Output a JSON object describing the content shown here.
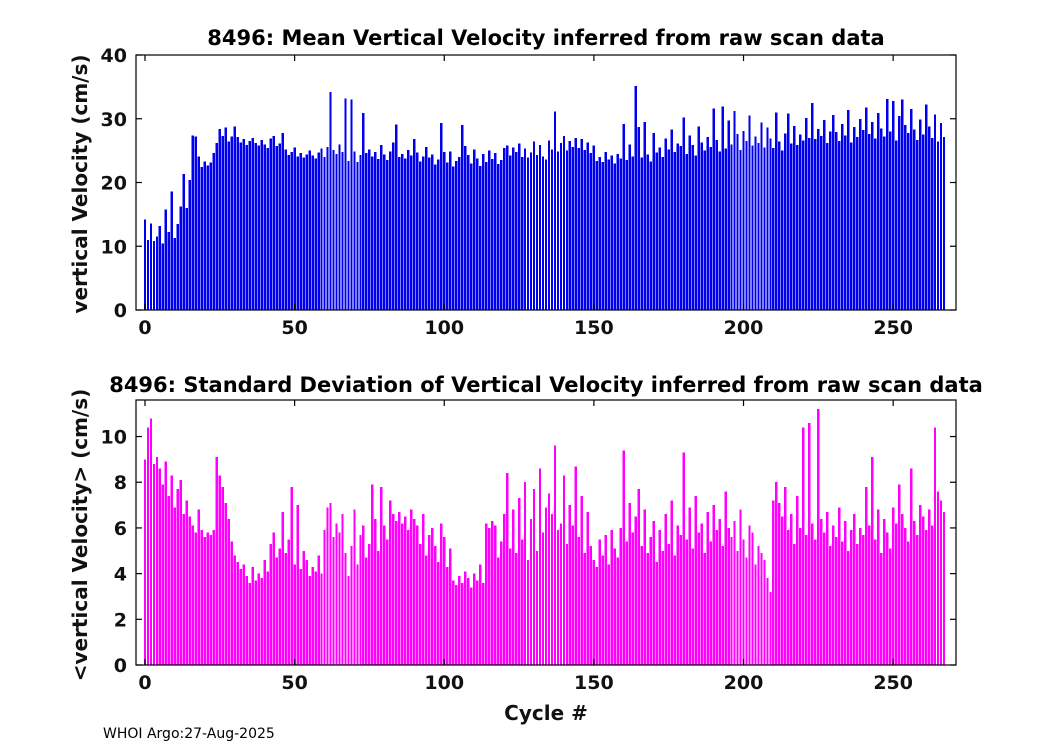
{
  "figure": {
    "footer": "WHOI Argo:27-Aug-2025"
  },
  "chart_data": [
    {
      "type": "bar",
      "title": "8496: Mean Vertical Velocity inferred from raw scan data",
      "ylabel": "vertical Velocity (cm/s)",
      "xlabel": "",
      "color": "#0000EE",
      "xlim": [
        -3,
        271
      ],
      "ylim": [
        0,
        40
      ],
      "xticks": [
        0,
        50,
        100,
        150,
        200,
        250
      ],
      "yticks": [
        0,
        10,
        20,
        30,
        40
      ],
      "x_start": 0,
      "x_step": 1,
      "values": [
        14.2,
        11.0,
        13.6,
        10.8,
        11.5,
        13.2,
        10.4,
        15.8,
        12.2,
        18.6,
        11.3,
        13.5,
        16.2,
        21.3,
        16.0,
        20.4,
        27.4,
        27.2,
        24.1,
        22.4,
        23.3,
        22.7,
        23.1,
        24.6,
        26.2,
        28.4,
        27.3,
        28.6,
        26.4,
        27.2,
        28.8,
        27.1,
        26.3,
        26.8,
        25.9,
        26.5,
        27.0,
        26.2,
        25.8,
        26.7,
        26.0,
        25.4,
        26.9,
        27.3,
        25.7,
        26.1,
        27.8,
        25.2,
        24.3,
        24.8,
        25.5,
        24.1,
        24.6,
        23.9,
        24.4,
        25.0,
        24.2,
        23.8,
        24.7,
        25.3,
        24.0,
        25.6,
        34.2,
        25.1,
        24.5,
        26.0,
        24.8,
        33.2,
        23.4,
        33.0,
        24.9,
        23.2,
        24.3,
        30.9,
        24.6,
        25.2,
        24.1,
        24.8,
        23.7,
        25.9,
        24.4,
        23.5,
        24.9,
        26.3,
        29.1,
        24.0,
        24.5,
        23.8,
        25.1,
        24.2,
        26.8,
        24.7,
        23.3,
        24.1,
        25.6,
        23.9,
        24.4,
        22.8,
        23.6,
        29.3,
        24.8,
        23.1,
        24.9,
        22.5,
        23.4,
        24.0,
        29.0,
        25.7,
        24.3,
        23.0,
        25.2,
        23.8,
        22.6,
        24.5,
        23.2,
        25.0,
        23.7,
        24.6,
        22.9,
        23.5,
        25.4,
        25.8,
        24.2,
        25.5,
        24.8,
        26.1,
        24.0,
        25.3,
        23.9,
        24.7,
        26.4,
        24.3,
        25.9,
        24.1,
        23.6,
        26.6,
        25.2,
        31.1,
        24.9,
        26.2,
        27.3,
        25.0,
        26.5,
        25.6,
        27.0,
        25.4,
        26.8,
        25.1,
        26.3,
        24.6,
        25.8,
        23.4,
        24.0,
        23.2,
        24.8,
        23.6,
        24.2,
        23.0,
        24.5,
        23.8,
        29.2,
        23.5,
        26.0,
        24.1,
        35.1,
        28.7,
        23.9,
        29.5,
        24.4,
        23.3,
        27.8,
        24.7,
        25.5,
        24.0,
        26.9,
        25.2,
        28.3,
        24.8,
        26.1,
        25.7,
        30.2,
        24.5,
        27.4,
        25.9,
        24.2,
        28.8,
        26.3,
        25.0,
        27.1,
        25.6,
        31.6,
        26.7,
        24.9,
        31.9,
        25.3,
        29.7,
        26.0,
        31.2,
        27.6,
        25.1,
        28.1,
        26.5,
        30.5,
        25.8,
        27.2,
        26.2,
        29.4,
        25.5,
        28.6,
        26.9,
        25.4,
        31.0,
        26.4,
        25.0,
        27.7,
        30.8,
        26.1,
        28.9,
        25.9,
        27.5,
        26.6,
        30.1,
        27.0,
        32.5,
        26.8,
        28.4,
        27.3,
        29.8,
        26.2,
        28.0,
        30.6,
        27.9,
        26.5,
        29.2,
        27.4,
        31.4,
        26.3,
        28.7,
        27.1,
        30.0,
        28.2,
        31.8,
        27.6,
        29.5,
        26.9,
        30.9,
        28.5,
        27.2,
        33.1,
        28.0,
        32.8,
        26.6,
        30.4,
        33.0,
        29.0,
        27.8,
        31.5,
        28.3,
        26.7,
        29.9,
        27.5,
        32.2,
        28.8,
        27.0,
        30.7,
        26.4,
        29.3,
        27.1
      ]
    },
    {
      "type": "bar",
      "title": "8496: Standard Deviation of Vertical Velocity inferred from raw scan data",
      "ylabel": "<vertical Velocity> (cm/s)",
      "xlabel": "Cycle #",
      "color": "#FF00FF",
      "xlim": [
        -3,
        271
      ],
      "ylim": [
        0,
        11.6
      ],
      "xticks": [
        0,
        50,
        100,
        150,
        200,
        250
      ],
      "yticks": [
        0,
        2,
        4,
        6,
        8,
        10
      ],
      "x_start": 0,
      "x_step": 1,
      "values": [
        9.0,
        10.4,
        10.8,
        8.8,
        9.1,
        8.6,
        7.9,
        8.9,
        7.4,
        8.3,
        6.9,
        7.7,
        8.1,
        6.6,
        7.2,
        6.5,
        6.1,
        5.8,
        6.8,
        5.9,
        5.6,
        5.8,
        5.7,
        5.9,
        9.1,
        8.3,
        7.8,
        7.1,
        6.4,
        5.4,
        4.8,
        4.5,
        4.2,
        4.4,
        3.9,
        3.6,
        4.3,
        3.7,
        4.0,
        3.8,
        4.6,
        4.1,
        5.3,
        5.8,
        4.7,
        5.1,
        6.7,
        4.9,
        5.5,
        7.8,
        4.4,
        7.0,
        4.2,
        5.0,
        4.6,
        3.9,
        4.3,
        4.1,
        4.8,
        4.0,
        5.9,
        6.9,
        7.1,
        5.6,
        6.2,
        5.8,
        6.6,
        4.9,
        3.9,
        5.2,
        6.8,
        4.4,
        5.7,
        6.1,
        4.7,
        5.3,
        7.9,
        6.4,
        5.0,
        7.8,
        6.1,
        5.5,
        7.2,
        6.6,
        6.3,
        6.7,
        6.2,
        6.5,
        5.9,
        6.8,
        6.4,
        6.1,
        5.3,
        6.6,
        4.8,
        5.7,
        6.0,
        5.2,
        4.5,
        6.2,
        5.6,
        4.3,
        5.1,
        3.7,
        3.5,
        3.9,
        3.6,
        4.1,
        3.8,
        3.4,
        4.0,
        3.7,
        4.4,
        3.6,
        6.2,
        6.0,
        6.3,
        6.1,
        4.7,
        5.4,
        6.6,
        8.4,
        5.1,
        6.8,
        4.9,
        7.3,
        5.5,
        8.0,
        4.6,
        6.4,
        7.7,
        5.0,
        8.6,
        5.8,
        6.9,
        7.5,
        6.6,
        9.6,
        5.9,
        6.2,
        8.3,
        5.3,
        7.0,
        6.1,
        8.7,
        5.6,
        7.4,
        4.9,
        6.7,
        5.2,
        4.6,
        4.3,
        5.5,
        4.8,
        5.7,
        4.4,
        5.9,
        5.1,
        4.7,
        6.0,
        9.4,
        5.4,
        7.1,
        5.8,
        6.5,
        7.7,
        5.2,
        6.8,
        4.9,
        5.6,
        6.3,
        4.5,
        5.9,
        5.0,
        6.6,
        5.3,
        7.2,
        4.8,
        6.1,
        5.7,
        9.3,
        5.5,
        6.9,
        5.1,
        7.4,
        5.8,
        6.2,
        4.9,
        6.7,
        5.4,
        7.0,
        5.9,
        6.4,
        5.2,
        7.6,
        6.0,
        5.6,
        6.3,
        5.0,
        6.8,
        5.5,
        4.7,
        6.1,
        5.8,
        4.4,
        5.2,
        4.9,
        4.6,
        3.8,
        3.2,
        7.2,
        8.0,
        7.1,
        6.5,
        7.8,
        5.9,
        6.6,
        5.3,
        7.4,
        6.0,
        10.4,
        5.7,
        10.6,
        6.2,
        5.5,
        11.2,
        6.4,
        5.8,
        6.7,
        5.2,
        6.1,
        5.6,
        6.9,
        5.4,
        6.3,
        5.0,
        5.9,
        6.6,
        5.3,
        6.0,
        5.7,
        7.8,
        6.1,
        9.1,
        5.5,
        6.8,
        4.9,
        6.4,
        5.8,
        5.1,
        6.9,
        6.2,
        7.9,
        6.6,
        6.0,
        5.4,
        8.6,
        6.3,
        5.7,
        7.0,
        6.5,
        5.9,
        6.8,
        6.1,
        10.4,
        7.6,
        7.2,
        6.7
      ]
    }
  ]
}
